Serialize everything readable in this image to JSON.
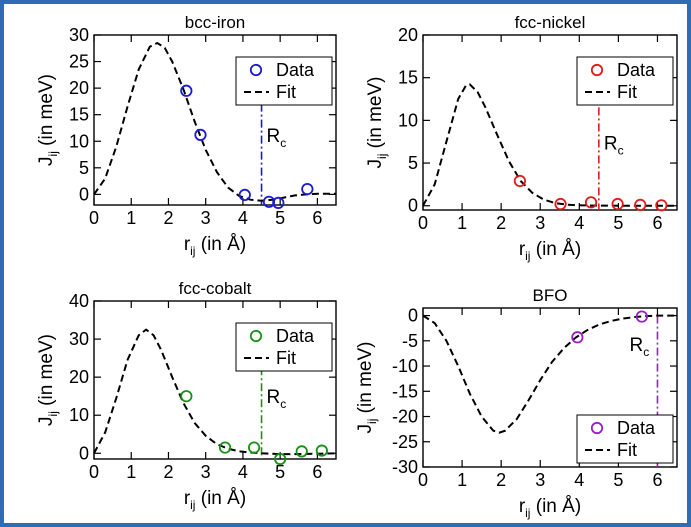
{
  "chart_data": [
    {
      "type": "scatter",
      "title": "bcc-iron",
      "xlabel": "r_ij (in Å)",
      "ylabel": "J_ij (in meV)",
      "xlim": [
        0,
        6.5
      ],
      "ylim": [
        -2,
        30
      ],
      "xticks": [
        "0",
        "1",
        "2",
        "3",
        "4",
        "5",
        "6"
      ],
      "yticks": [
        "0",
        "5",
        "10",
        "15",
        "20",
        "25",
        "30"
      ],
      "color": "#1a1ad6",
      "legend": {
        "placement": "top-right",
        "entries": [
          "Data",
          "Fit"
        ]
      },
      "annotation": "R_c",
      "rc_x": 4.5,
      "series": [
        {
          "name": "Data",
          "kind": "markers",
          "x": [
            2.48,
            2.86,
            4.05,
            4.7,
            4.95,
            5.73
          ],
          "y": [
            19.5,
            11.2,
            -0.1,
            -1.4,
            -1.6,
            1.0
          ]
        },
        {
          "name": "Fit",
          "kind": "dashed-line",
          "x": [
            0,
            0.3,
            0.6,
            0.9,
            1.2,
            1.5,
            1.7,
            1.9,
            2.1,
            2.4,
            2.7,
            3.0,
            3.3,
            3.6,
            3.9,
            4.2,
            4.5,
            4.8,
            5.1,
            5.4,
            5.7,
            6.0,
            6.5
          ],
          "y": [
            0,
            3.0,
            9.0,
            16.5,
            23.5,
            27.8,
            28.5,
            27.6,
            25.0,
            19.8,
            13.8,
            8.4,
            4.2,
            1.3,
            -0.3,
            -1.0,
            -1.2,
            -1.0,
            -0.6,
            -0.2,
            0.0,
            0.1,
            0.1
          ]
        }
      ]
    },
    {
      "type": "scatter",
      "title": "fcc-nickel",
      "xlabel": "r_ij (in Å)",
      "ylabel": "J_ij (in meV)",
      "xlim": [
        0,
        6.5
      ],
      "ylim": [
        -0.5,
        20
      ],
      "xticks": [
        "0",
        "1",
        "2",
        "3",
        "4",
        "5",
        "6"
      ],
      "yticks": [
        "0",
        "5",
        "10",
        "15",
        "20"
      ],
      "color": "#e01b1b",
      "legend": {
        "placement": "top-right",
        "entries": [
          "Data",
          "Fit"
        ]
      },
      "annotation": "R_c",
      "rc_x": 4.5,
      "series": [
        {
          "name": "Data",
          "kind": "markers",
          "x": [
            2.48,
            3.52,
            4.3,
            4.98,
            5.56,
            6.1
          ],
          "y": [
            2.9,
            0.2,
            0.4,
            0.2,
            0.1,
            0.05
          ]
        },
        {
          "name": "Fit",
          "kind": "dashed-line",
          "x": [
            0,
            0.3,
            0.6,
            0.9,
            1.1,
            1.2,
            1.4,
            1.6,
            1.9,
            2.2,
            2.5,
            2.8,
            3.1,
            3.4,
            3.7,
            4.0,
            4.5,
            5.0,
            5.5,
            6.0,
            6.5
          ],
          "y": [
            0,
            2.5,
            7.5,
            12.5,
            14.1,
            14.2,
            13.3,
            11.5,
            8.3,
            5.2,
            2.9,
            1.5,
            0.7,
            0.3,
            0.12,
            0.05,
            0.02,
            0.0,
            0.0,
            0.0,
            0.0
          ]
        }
      ]
    },
    {
      "type": "scatter",
      "title": "fcc-cobalt",
      "xlabel": "r_ij (in Å)",
      "ylabel": "J_ij (in meV)",
      "xlim": [
        0,
        6.5
      ],
      "ylim": [
        -1.5,
        40
      ],
      "xticks": [
        "0",
        "1",
        "2",
        "3",
        "4",
        "5",
        "6"
      ],
      "yticks": [
        "0",
        "10",
        "20",
        "30",
        "40"
      ],
      "color": "#179117",
      "legend": {
        "placement": "top-right",
        "entries": [
          "Data",
          "Fit"
        ]
      },
      "annotation": "R_c",
      "rc_x": 4.5,
      "series": [
        {
          "name": "Data",
          "kind": "markers",
          "x": [
            2.48,
            3.52,
            4.3,
            5.0,
            5.58,
            6.12
          ],
          "y": [
            15.0,
            1.5,
            1.5,
            -1.5,
            0.5,
            0.7
          ]
        },
        {
          "name": "Fit",
          "kind": "dashed-line",
          "x": [
            0,
            0.3,
            0.6,
            0.9,
            1.2,
            1.4,
            1.6,
            1.8,
            2.1,
            2.4,
            2.7,
            3.0,
            3.3,
            3.6,
            3.9,
            4.2,
            4.5,
            5.0,
            5.5,
            6.0,
            6.5
          ],
          "y": [
            0,
            5.5,
            14.5,
            24.5,
            31.0,
            32.5,
            31.0,
            27.2,
            20.0,
            13.2,
            8.0,
            4.6,
            2.4,
            1.2,
            0.5,
            0.2,
            0.0,
            -0.2,
            -0.2,
            -0.1,
            0.0
          ]
        }
      ]
    },
    {
      "type": "scatter",
      "title": "BFO",
      "xlabel": "r_ij (in Å)",
      "ylabel": "J_ij (in meV)",
      "xlim": [
        0,
        6.5
      ],
      "ylim": [
        -30,
        1.5
      ],
      "xticks": [
        "0",
        "1",
        "2",
        "3",
        "4",
        "5",
        "6"
      ],
      "yticks": [
        "0",
        "-5",
        "-10",
        "-15",
        "-20",
        "-25",
        "-30"
      ],
      "color": "#9a1fc4",
      "legend": {
        "placement": "bottom-right",
        "entries": [
          "Data",
          "Fit"
        ]
      },
      "annotation": "R_c",
      "rc_x": 6.0,
      "series": [
        {
          "name": "Data",
          "kind": "markers",
          "x": [
            3.95,
            5.6
          ],
          "y": [
            -4.3,
            -0.2
          ]
        },
        {
          "name": "Fit",
          "kind": "dashed-line",
          "x": [
            0,
            0.3,
            0.6,
            0.9,
            1.2,
            1.5,
            1.8,
            1.95,
            2.1,
            2.4,
            2.7,
            3.0,
            3.3,
            3.6,
            3.9,
            4.2,
            4.5,
            4.8,
            5.1,
            5.4,
            5.7,
            6.0,
            6.5
          ],
          "y": [
            0,
            -1.5,
            -5.0,
            -10.0,
            -15.5,
            -20.0,
            -22.8,
            -23.2,
            -22.8,
            -20.5,
            -16.8,
            -12.8,
            -9.2,
            -6.5,
            -4.4,
            -2.9,
            -1.8,
            -1.1,
            -0.6,
            -0.3,
            -0.1,
            0.0,
            0.0
          ]
        }
      ]
    }
  ]
}
